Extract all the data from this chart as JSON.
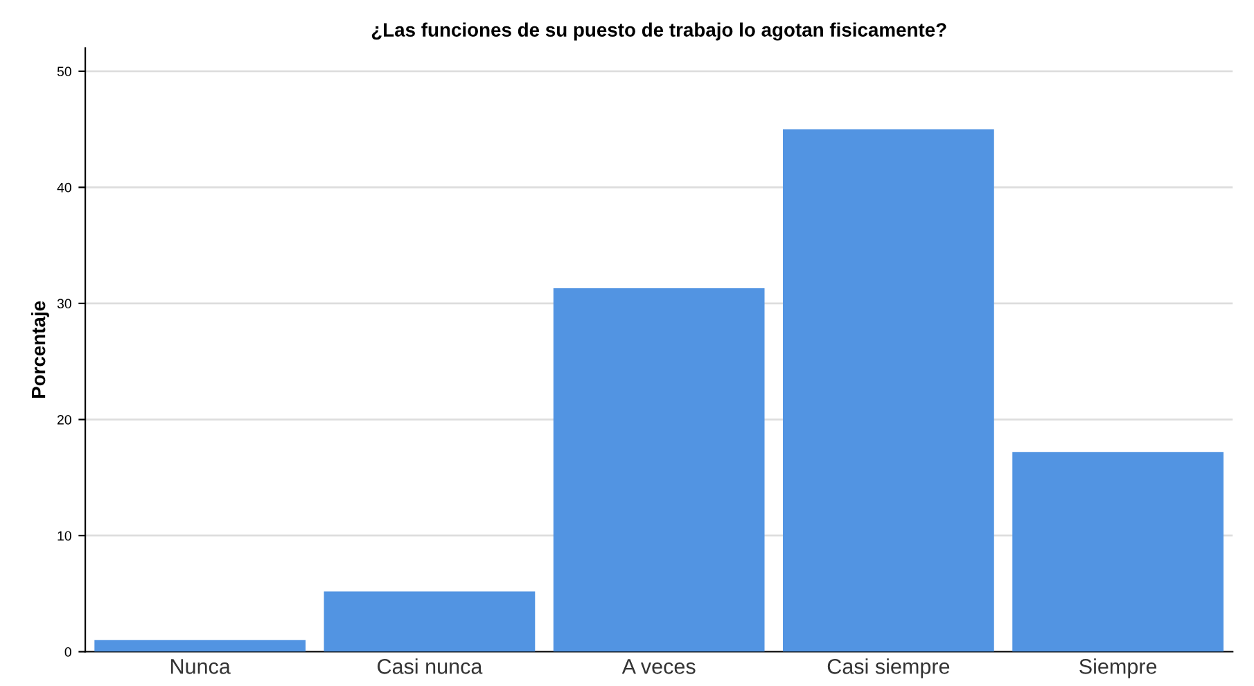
{
  "chart_data": {
    "type": "bar",
    "title": "¿Las funciones de su puesto de trabajo lo agotan fisicamente?",
    "ylabel": "Porcentaje",
    "categories": [
      "Nunca",
      "Casi nunca",
      "A veces",
      "Casi siempre",
      "Siempre"
    ],
    "values": [
      1.0,
      5.2,
      31.3,
      45.0,
      17.2
    ],
    "color": "#5294e2",
    "ylim": [
      0,
      52
    ],
    "yticks": [
      0,
      10,
      20,
      30,
      40,
      50
    ],
    "grid": "y"
  }
}
